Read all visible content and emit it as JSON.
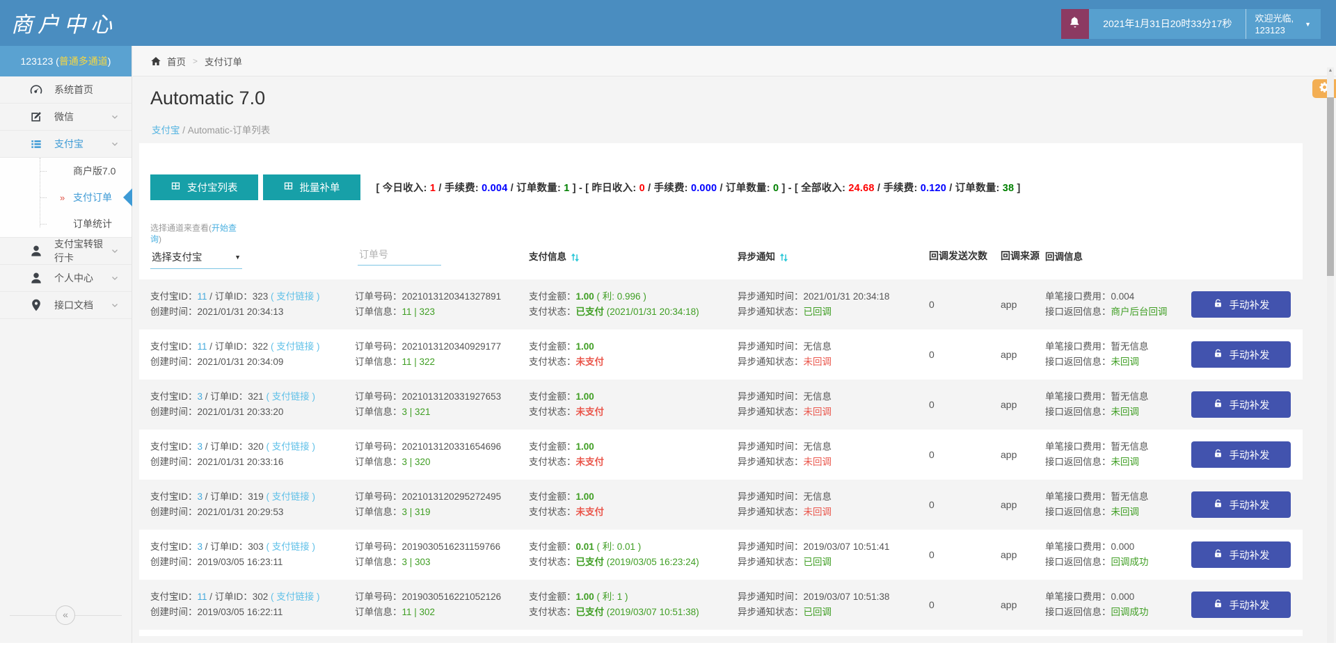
{
  "topbar": {
    "logo": "商户中心",
    "datetime": "2021年1月31日20时33分17秒",
    "welcome_line1": "欢迎光临,",
    "welcome_line2": "123123"
  },
  "sidebar": {
    "account_prefix": "123123 ( ",
    "account_highlight": "普通多通道",
    "account_suffix": " )",
    "items": [
      {
        "icon": "dashboard",
        "label": "系统首页",
        "chevron": false
      },
      {
        "icon": "edit",
        "label": "微信",
        "chevron": true
      },
      {
        "icon": "list",
        "label": "支付宝",
        "chevron": true,
        "parent_active": true,
        "children": [
          {
            "label": "商户版7.0",
            "active": false
          },
          {
            "label": "支付订单",
            "active": true
          },
          {
            "label": "订单统计",
            "active": false
          }
        ]
      },
      {
        "icon": "user",
        "label": "支付宝转银行卡",
        "chevron": true
      },
      {
        "icon": "user",
        "label": "个人中心",
        "chevron": true
      },
      {
        "icon": "pin",
        "label": "接口文档",
        "chevron": true
      }
    ],
    "collapse_glyph": "«"
  },
  "breadcrumb": {
    "home": "首页",
    "sep": ">",
    "current": "支付订单"
  },
  "page": {
    "title": "Automatic 7.0",
    "crumb_link": "支付宝",
    "crumb_sep": " / ",
    "crumb_current": "Automatic-订单列表"
  },
  "toolbar": {
    "buttons": [
      {
        "label": "支付宝列表"
      },
      {
        "label": "批量补单"
      }
    ],
    "stats": {
      "fee_label": "手续费:",
      "count_label": "订单数量:",
      "groups": [
        {
          "label": "今日收入:",
          "income": "1",
          "fee": "0.004",
          "count": "1"
        },
        {
          "label": "昨日收入:",
          "income": "0",
          "fee": "0.000",
          "count": "0"
        },
        {
          "label": "全部收入:",
          "income": "24.68",
          "fee": "0.120",
          "count": "38"
        }
      ]
    }
  },
  "filters": {
    "hint_prefix": "选择通道来查看(",
    "hint_link": "开始查询",
    "hint_suffix": ")",
    "select_value": "选择支付宝",
    "order_placeholder": "订单号"
  },
  "table": {
    "headers": {
      "pay_info": "支付信息",
      "notify": "异步通知",
      "send_count": "回调发送次数",
      "source": "回调来源",
      "cb_info": "回调信息"
    },
    "labels": {
      "alipay_id": "支付宝ID：",
      "order_id": "订单ID：",
      "created": "创建时间：",
      "order_no": "订单号码：",
      "order_info": "订单信息：",
      "amount": "支付金额：",
      "pay_status": "支付状态：",
      "notify_time": "异步通知时间：",
      "notify_status": "异步通知状态：",
      "fee": "单笔接口费用：",
      "ret": "接口返回信息：",
      "action": "手动补发",
      "pay_link": "( 支付链接 )"
    },
    "rows": [
      {
        "alipay_id": "11",
        "order_id": "323",
        "created": "2021/01/31 20:34:13",
        "order_no": "2021013120341327891",
        "order_info": "11 | 323",
        "amount": "1.00",
        "profit": " ( 利: 0.996 )",
        "paid": true,
        "pay_status": "已支付",
        "pay_time": " (2021/01/31 20:34:18)",
        "notify_time": "2021/01/31 20:34:18",
        "notified": true,
        "notify_status": "已回调",
        "send_count": "0",
        "source": "app",
        "fee": "0.004",
        "ret": "商户后台回调"
      },
      {
        "alipay_id": "11",
        "order_id": "322",
        "created": "2021/01/31 20:34:09",
        "order_no": "2021013120340929177",
        "order_info": "11 | 322",
        "amount": "1.00",
        "profit": "",
        "paid": false,
        "pay_status": "未支付",
        "pay_time": "",
        "notify_time": "无信息",
        "notified": false,
        "notify_status": "未回调",
        "send_count": "0",
        "source": "app",
        "fee": "暂无信息",
        "ret": "未回调"
      },
      {
        "alipay_id": "3",
        "order_id": "321",
        "created": "2021/01/31 20:33:20",
        "order_no": "2021013120331927653",
        "order_info": "3 | 321",
        "amount": "1.00",
        "profit": "",
        "paid": false,
        "pay_status": "未支付",
        "pay_time": "",
        "notify_time": "无信息",
        "notified": false,
        "notify_status": "未回调",
        "send_count": "0",
        "source": "app",
        "fee": "暂无信息",
        "ret": "未回调"
      },
      {
        "alipay_id": "3",
        "order_id": "320",
        "created": "2021/01/31 20:33:16",
        "order_no": "2021013120331654696",
        "order_info": "3 | 320",
        "amount": "1.00",
        "profit": "",
        "paid": false,
        "pay_status": "未支付",
        "pay_time": "",
        "notify_time": "无信息",
        "notified": false,
        "notify_status": "未回调",
        "send_count": "0",
        "source": "app",
        "fee": "暂无信息",
        "ret": "未回调"
      },
      {
        "alipay_id": "3",
        "order_id": "319",
        "created": "2021/01/31 20:29:53",
        "order_no": "2021013120295272495",
        "order_info": "3 | 319",
        "amount": "1.00",
        "profit": "",
        "paid": false,
        "pay_status": "未支付",
        "pay_time": "",
        "notify_time": "无信息",
        "notified": false,
        "notify_status": "未回调",
        "send_count": "0",
        "source": "app",
        "fee": "暂无信息",
        "ret": "未回调"
      },
      {
        "alipay_id": "3",
        "order_id": "303",
        "created": "2019/03/05 16:23:11",
        "order_no": "2019030516231159766",
        "order_info": "3 | 303",
        "amount": "0.01",
        "profit": " ( 利: 0.01 )",
        "paid": true,
        "pay_status": "已支付",
        "pay_time": " (2019/03/05 16:23:24)",
        "notify_time": "2019/03/07 10:51:41",
        "notified": true,
        "notify_status": "已回调",
        "send_count": "0",
        "source": "app",
        "fee": "0.000",
        "ret": "回调成功"
      },
      {
        "alipay_id": "11",
        "order_id": "302",
        "created": "2019/03/05 16:22:11",
        "order_no": "2019030516221052126",
        "order_info": "11 | 302",
        "amount": "1.00",
        "profit": " ( 利: 1 )",
        "paid": true,
        "pay_status": "已支付",
        "pay_time": " (2019/03/07 10:51:38)",
        "notify_time": "2019/03/07 10:51:38",
        "notified": true,
        "notify_status": "已回调",
        "send_count": "0",
        "source": "app",
        "fee": "0.000",
        "ret": "回调成功"
      }
    ]
  },
  "colors": {
    "header_blue": "#4a8dc0",
    "light_blue_box": "#57a0cf",
    "bell_purple": "#8c3a62",
    "accent_yellow": "#f5d742",
    "teal_button": "#17a0a8",
    "indigo_button": "#4253ae",
    "link_blue": "#45aadd",
    "value_green": "#3f9e23",
    "status_red": "#ea564b",
    "stats_red": "#ff0000",
    "stats_blue": "#0000ff",
    "stats_green": "#008000",
    "gear_orange": "#f3ae53",
    "active_menu_blue": "#3d9ad5",
    "sort_cyan": "#2cc8d8"
  }
}
